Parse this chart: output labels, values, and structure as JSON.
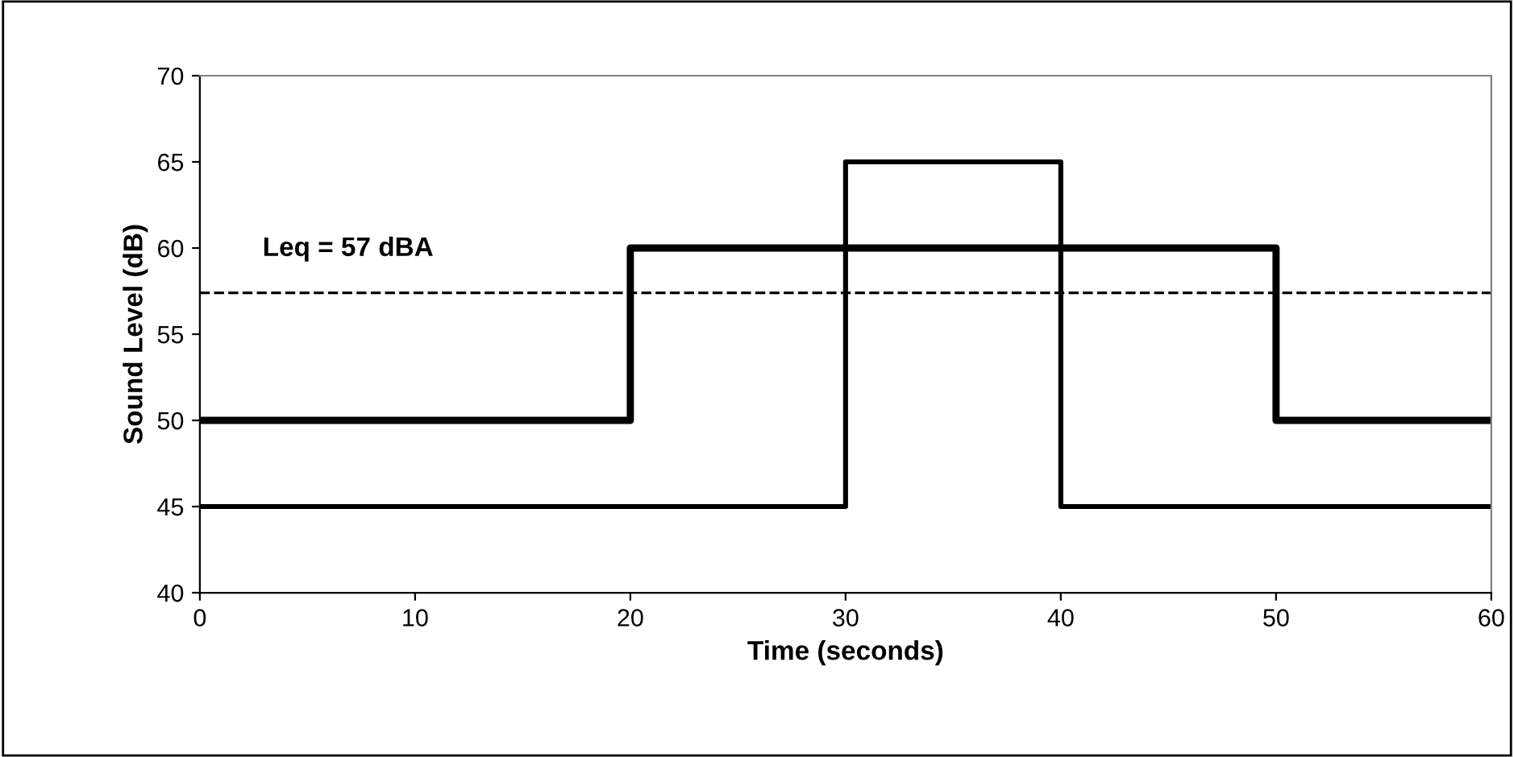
{
  "chart_data": {
    "type": "step",
    "xlabel": "Time (seconds)",
    "ylabel": "Sound Level (dB)",
    "series": [
      {
        "color": "#000000",
        "x": [
          0,
          20,
          50,
          60
        ],
        "values": [
          50,
          60,
          50,
          50
        ]
      },
      {
        "color": "#000000",
        "x": [
          0,
          30,
          40,
          60
        ],
        "values": [
          45,
          65,
          45,
          45
        ]
      }
    ],
    "xlim": [
      0,
      60
    ],
    "xticks": [
      0,
      10,
      20,
      30,
      40,
      50,
      60
    ],
    "ylim": [
      40,
      70
    ],
    "yticks": [
      40,
      45,
      50,
      55,
      60,
      65,
      70
    ],
    "ref_lines": [
      {
        "axis": "y",
        "value": 57.4,
        "label": "Leq = 57 dBA",
        "color": "#000000",
        "line_style": "dashed"
      }
    ],
    "grid": false,
    "legend": false,
    "marker": "none",
    "line_style": "solid"
  }
}
